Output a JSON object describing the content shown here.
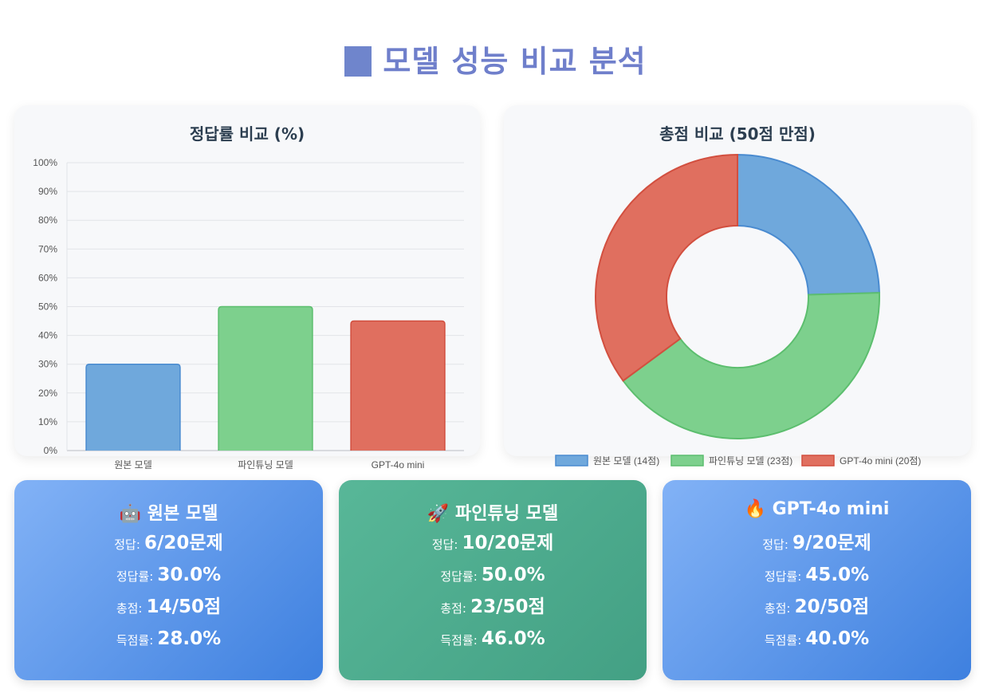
{
  "title_icon": "blue-square",
  "title": "모델 성능 비교 분석",
  "chart_data": [
    {
      "type": "bar",
      "title": "정답률 비교 (%)",
      "categories": [
        "원본 모델",
        "파인튜닝 모델",
        "GPT-4o mini"
      ],
      "values": [
        30,
        50,
        45
      ],
      "ylim": [
        0,
        100
      ],
      "yticks": [
        "0%",
        "10%",
        "20%",
        "30%",
        "40%",
        "50%",
        "60%",
        "70%",
        "80%",
        "90%",
        "100%"
      ],
      "grid": true,
      "colors": [
        "#6fa8dc",
        "#7dd08d",
        "#e06f5f"
      ],
      "border_colors": [
        "#4a8bd0",
        "#5cbe6e",
        "#d24f3f"
      ]
    },
    {
      "type": "pie",
      "title": "총점 비교 (50점 만점)",
      "labels": [
        "원본 모델 (14점)",
        "파인튜닝 모델 (23점)",
        "GPT-4o mini (20점)"
      ],
      "values": [
        14,
        23,
        20
      ],
      "donut": true,
      "legend": "bottom",
      "colors": [
        "#6fa8dc",
        "#7dd08d",
        "#e06f5f"
      ],
      "border_colors": [
        "#4a8bd0",
        "#5cbe6e",
        "#d24f3f"
      ]
    }
  ],
  "cards": [
    {
      "icon": "robot-icon",
      "icon_glyph": "🤖",
      "name": "원본 모델",
      "style": "blue",
      "correct_label": "정답:",
      "correct_value": "6/20문제",
      "rate_label": "정답률:",
      "rate_value": "30.0%",
      "score_label": "총점:",
      "score_value": "14/50점",
      "score_rate_label": "득점률:",
      "score_rate_value": "28.0%"
    },
    {
      "icon": "rocket-icon",
      "icon_glyph": "🚀",
      "name": "파인튜닝 모델",
      "style": "green",
      "correct_label": "정답:",
      "correct_value": "10/20문제",
      "rate_label": "정답률:",
      "rate_value": "50.0%",
      "score_label": "총점:",
      "score_value": "23/50점",
      "score_rate_label": "득점률:",
      "score_rate_value": "46.0%"
    },
    {
      "icon": "fire-icon",
      "icon_glyph": "🔥",
      "name": "GPT-4o mini",
      "style": "blue",
      "correct_label": "정답:",
      "correct_value": "9/20문제",
      "rate_label": "정답률:",
      "rate_value": "45.0%",
      "score_label": "총점:",
      "score_value": "20/50점",
      "score_rate_label": "득점률:",
      "score_rate_value": "40.0%"
    }
  ]
}
